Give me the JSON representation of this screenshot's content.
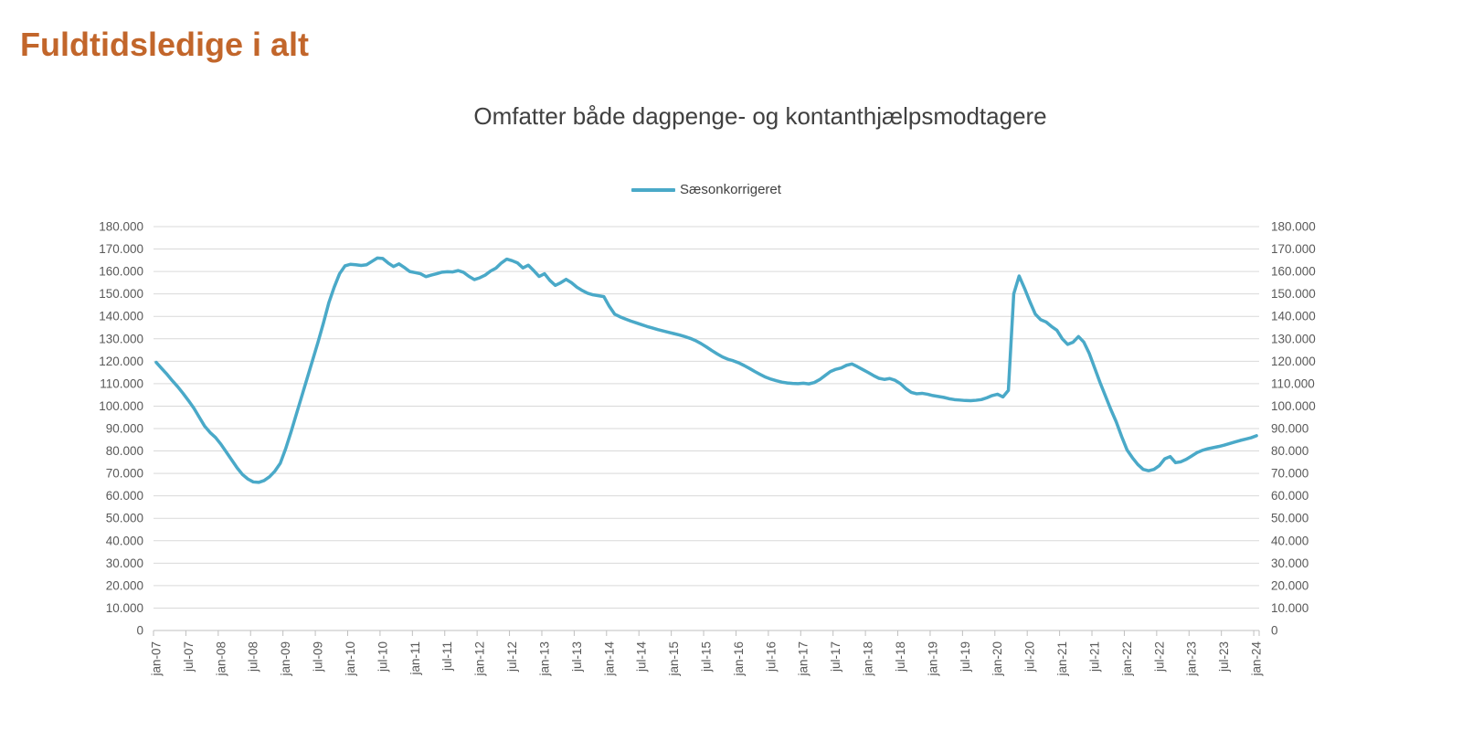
{
  "page": {
    "title": "Fuldtidsledige i alt"
  },
  "chart": {
    "subtitle": "Omfatter både dagpenge- og kontanthjælpsmodtagere",
    "legend_label": "Sæsonkorrigeret",
    "colors": {
      "title": "#C2662B",
      "subtitle": "#404040",
      "line": "#4AA9C8",
      "axis_text": "#595959",
      "gridline": "#D9D9D9",
      "axis_line": "#BFBFBF"
    }
  },
  "chart_data": {
    "type": "line",
    "title": "Omfatter både dagpenge- og kontanthjælpsmodtagere",
    "legend": [
      "Sæsonkorrigeret"
    ],
    "legend_position": "top-center",
    "grid": "horizontal",
    "xlabel": "",
    "ylabel": "",
    "ylim": [
      0,
      180000
    ],
    "ytick_step": 10000,
    "ytick_labels": [
      "0",
      "10.000",
      "20.000",
      "30.000",
      "40.000",
      "50.000",
      "60.000",
      "70.000",
      "80.000",
      "90.000",
      "100.000",
      "110.000",
      "120.000",
      "130.000",
      "140.000",
      "150.000",
      "160.000",
      "170.000",
      "180.000"
    ],
    "y_axis_sides": [
      "left",
      "right"
    ],
    "x_tick_every_n_points": 6,
    "x_tick_labels": [
      "jan-07",
      "jul-07",
      "jan-08",
      "jul-08",
      "jan-09",
      "jul-09",
      "jan-10",
      "jul-10",
      "jan-11",
      "jul-11",
      "jan-12",
      "jul-12",
      "jan-13",
      "jul-13",
      "jan-14",
      "jul-14",
      "jan-15",
      "jul-15",
      "jan-16",
      "jul-16",
      "jan-17",
      "jul-17",
      "jan-18",
      "jul-18",
      "jan-19",
      "jul-19",
      "jan-20",
      "jul-20",
      "jan-21",
      "jul-21",
      "jan-22",
      "jul-22",
      "jan-23",
      "jul-23",
      "jan-24"
    ],
    "series": [
      {
        "name": "Sæsonkorrigeret",
        "period": "monthly jan-2007 .. jan-2024",
        "values": [
          119500,
          116800,
          114200,
          111300,
          108600,
          105600,
          102400,
          99000,
          95000,
          91000,
          88200,
          86000,
          83000,
          79500,
          76000,
          72500,
          69500,
          67500,
          66200,
          66000,
          66800,
          68500,
          71000,
          74500,
          81000,
          88500,
          96500,
          104500,
          112500,
          120500,
          128500,
          137000,
          146000,
          153000,
          159000,
          162500,
          163200,
          163000,
          162700,
          163000,
          164500,
          166000,
          165800,
          163800,
          162200,
          163400,
          161800,
          160000,
          159500,
          159000,
          157700,
          158400,
          159000,
          159700,
          159900,
          159800,
          160400,
          159600,
          157800,
          156400,
          157200,
          158400,
          160200,
          161500,
          163800,
          165500,
          164800,
          163800,
          161600,
          162800,
          160400,
          157800,
          159000,
          156000,
          153800,
          155000,
          156500,
          155000,
          153000,
          151500,
          150300,
          149600,
          149200,
          148800,
          144500,
          141000,
          139800,
          138800,
          137900,
          137100,
          136300,
          135500,
          134800,
          134100,
          133500,
          132900,
          132300,
          131700,
          131000,
          130200,
          129200,
          127900,
          126400,
          124800,
          123300,
          121900,
          120900,
          120200,
          119300,
          118100,
          116800,
          115400,
          114100,
          112900,
          112000,
          111300,
          110700,
          110300,
          110100,
          110000,
          110200,
          109900,
          110500,
          111800,
          113600,
          115400,
          116400,
          117000,
          118200,
          118800,
          117600,
          116300,
          115000,
          113600,
          112400,
          111900,
          112300,
          111500,
          110000,
          107800,
          106100,
          105500,
          105700,
          105300,
          104700,
          104300,
          103900,
          103300,
          102900,
          102700,
          102500,
          102400,
          102600,
          102900,
          103700,
          104700,
          105300,
          104100,
          107000,
          150000,
          158000,
          152500,
          146500,
          141000,
          138500,
          137500,
          135500,
          133800,
          130000,
          127500,
          128500,
          131000,
          128500,
          123500,
          117000,
          110500,
          104500,
          98500,
          93000,
          86500,
          80500,
          77000,
          74000,
          71800,
          71200,
          71800,
          73500,
          76500,
          77500,
          74800,
          75200,
          76300,
          77800,
          79300,
          80300,
          81000,
          81500,
          82000,
          82600,
          83300,
          84000,
          84700,
          85300,
          85900,
          86800
        ]
      }
    ]
  }
}
